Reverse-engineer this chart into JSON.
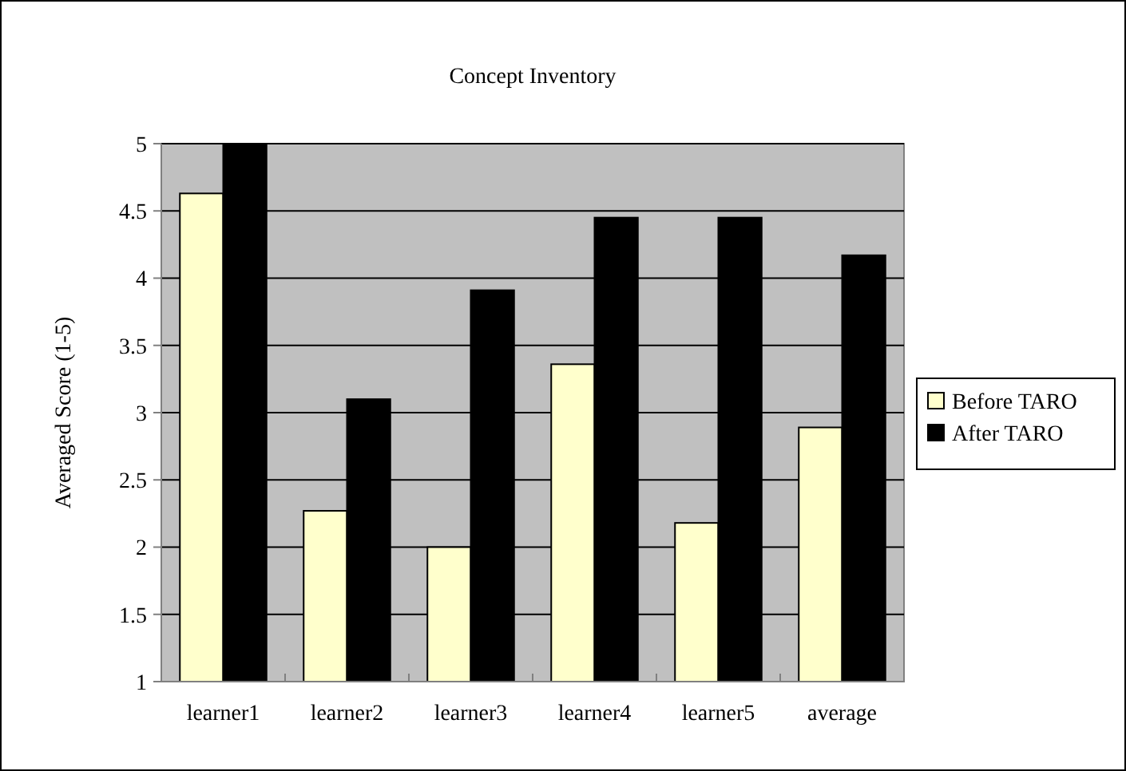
{
  "chart_data": {
    "type": "bar",
    "title": "Concept Inventory",
    "ylabel": "Averaged Score (1-5)",
    "categories": [
      "learner1",
      "learner2",
      "learner3",
      "learner4",
      "learner5",
      "average"
    ],
    "series": [
      {
        "name": "Before TARO",
        "color": "#ffffcc",
        "values": [
          4.63,
          2.27,
          2.0,
          3.36,
          2.18,
          2.89
        ]
      },
      {
        "name": "After TARO",
        "color": "#000000",
        "values": [
          5.0,
          3.1,
          3.91,
          4.45,
          4.45,
          4.17
        ]
      }
    ],
    "ylim": [
      1,
      5
    ],
    "yticks": [
      1,
      1.5,
      2,
      2.5,
      3,
      3.5,
      4,
      4.5,
      5
    ],
    "grid": "y",
    "legend": "right"
  }
}
